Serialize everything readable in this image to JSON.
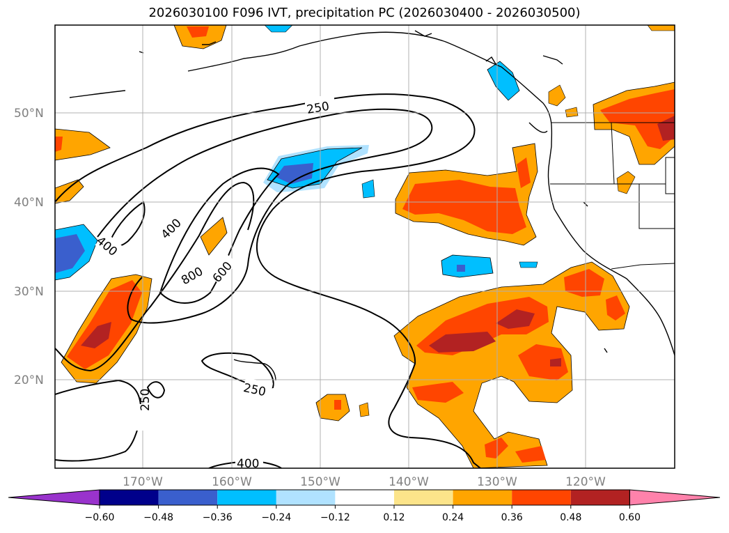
{
  "title": "2026030100 F096 IVT, precipitation PC (2026030400 - 2026030500)",
  "lat_labels": [
    "50°N",
    "40°N",
    "30°N",
    "20°N"
  ],
  "lon_labels": [
    "170°W",
    "160°W",
    "150°W",
    "140°W",
    "130°W",
    "120°W"
  ],
  "contour_labels": [
    "250",
    "400",
    "400",
    "800",
    "600",
    "250",
    "250",
    "400"
  ],
  "colorbar": {
    "ticks": [
      "−0.60",
      "−0.48",
      "−0.36",
      "−0.24",
      "−0.12",
      "0.12",
      "0.24",
      "0.36",
      "0.48",
      "0.60"
    ],
    "colors": [
      "#9933cc",
      "#00008b",
      "#3a5fcd",
      "#00bfff",
      "#b0e2ff",
      "#ffffff",
      "#fce48a",
      "#ffa500",
      "#ff4500",
      "#b22222",
      "#ff82ab"
    ]
  }
}
